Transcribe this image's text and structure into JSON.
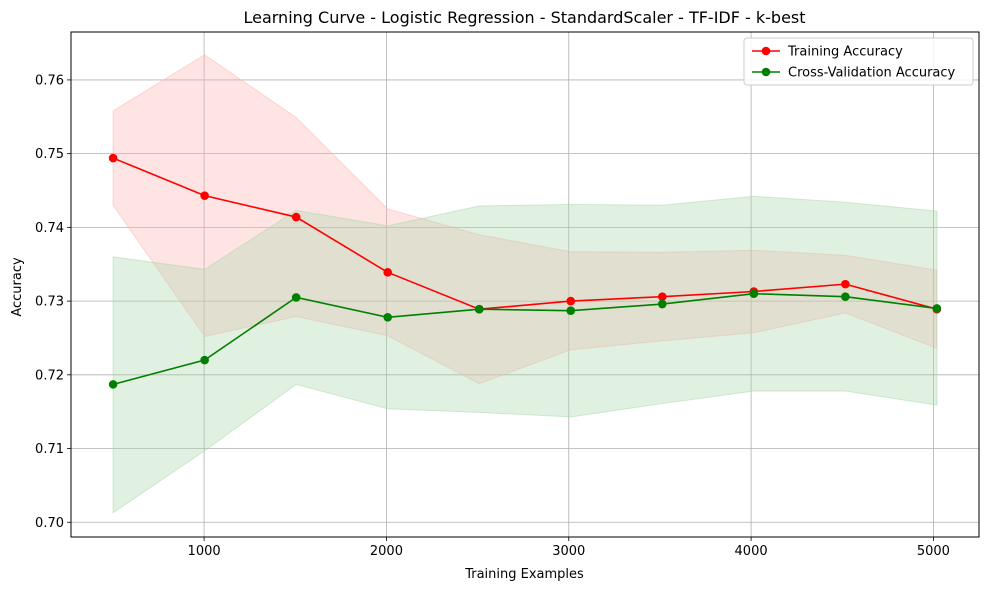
{
  "chart_data": {
    "type": "line",
    "title": "Learning Curve - Logistic Regression - StandardScaler - TF-IDF - k-best",
    "xlabel": "Training Examples",
    "ylabel": "Accuracy",
    "x": [
      501,
      1003,
      1505,
      2007,
      2509,
      3011,
      3513,
      4015,
      4517,
      5019
    ],
    "xlim": [
      270,
      5250
    ],
    "ylim": [
      0.698,
      0.7665
    ],
    "xticks": [
      1000,
      2000,
      3000,
      4000,
      5000
    ],
    "xtick_labels": [
      "1000",
      "2000",
      "3000",
      "4000",
      "5000"
    ],
    "yticks": [
      0.7,
      0.71,
      0.72,
      0.73,
      0.74,
      0.75,
      0.76
    ],
    "ytick_labels": [
      "0.70",
      "0.71",
      "0.72",
      "0.73",
      "0.74",
      "0.75",
      "0.76"
    ],
    "grid": true,
    "legend_position": "top-right",
    "series": [
      {
        "name": "Training Accuracy",
        "color": "#ff0000",
        "band_color": "#ffb3b3",
        "values": [
          0.7494,
          0.7443,
          0.7414,
          0.7339,
          0.7289,
          0.73,
          0.7306,
          0.7313,
          0.7323,
          0.7289
        ],
        "band_upper": [
          0.7558,
          0.7634,
          0.7549,
          0.7425,
          0.739,
          0.7367,
          0.7366,
          0.7369,
          0.7362,
          0.7342
        ],
        "band_lower": [
          0.743,
          0.7252,
          0.7279,
          0.7253,
          0.7188,
          0.7234,
          0.7246,
          0.7257,
          0.7284,
          0.7236
        ]
      },
      {
        "name": "Cross-Validation Accuracy",
        "color": "#008000",
        "band_color": "#a8d8a8",
        "values": [
          0.7187,
          0.722,
          0.7305,
          0.7278,
          0.7289,
          0.7287,
          0.7296,
          0.731,
          0.7306,
          0.729
        ],
        "band_upper": [
          0.736,
          0.7343,
          0.7423,
          0.7402,
          0.7429,
          0.7431,
          0.743,
          0.7442,
          0.7434,
          0.7422
        ],
        "band_lower": [
          0.7013,
          0.7097,
          0.7187,
          0.7154,
          0.7149,
          0.7143,
          0.7161,
          0.7178,
          0.7178,
          0.7159
        ]
      }
    ]
  }
}
